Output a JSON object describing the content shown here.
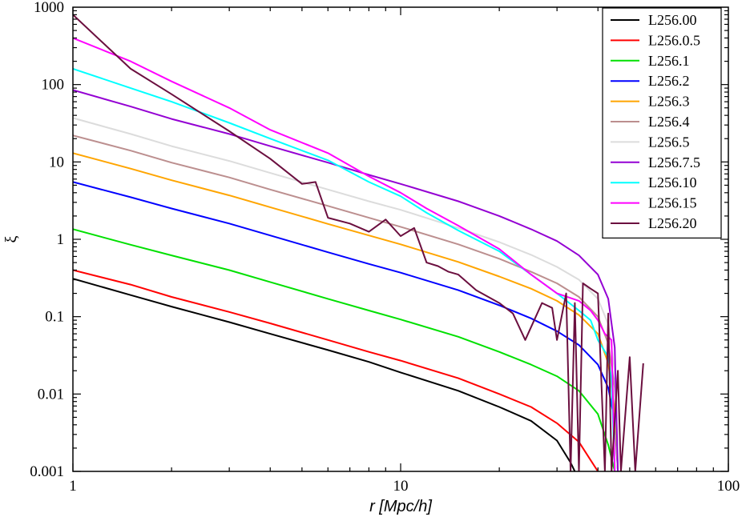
{
  "chart_data": {
    "type": "line",
    "title": "",
    "xlabel": "r [Mpc/h]",
    "ylabel": "ξ",
    "xscale": "log",
    "yscale": "log",
    "xlim": [
      1,
      100
    ],
    "ylim": [
      0.001,
      1000
    ],
    "x_ticks": [
      "1",
      "10",
      "100"
    ],
    "y_ticks": [
      "0.001",
      "0.01",
      "0.1",
      "1",
      "10",
      "100",
      "1000"
    ],
    "legend_position": "top-right",
    "grid": false,
    "series": [
      {
        "name": "L256.00",
        "color": "#000000",
        "points": [
          [
            1,
            0.31
          ],
          [
            1.5,
            0.19
          ],
          [
            2,
            0.135
          ],
          [
            3,
            0.085
          ],
          [
            4,
            0.06
          ],
          [
            6,
            0.037
          ],
          [
            8,
            0.026
          ],
          [
            10,
            0.019
          ],
          [
            15,
            0.011
          ],
          [
            20,
            0.0068
          ],
          [
            25,
            0.0045
          ],
          [
            30,
            0.0025
          ],
          [
            33,
            0.0013
          ],
          [
            34,
            0.001
          ]
        ]
      },
      {
        "name": "L256.0.5",
        "color": "#ff0000",
        "points": [
          [
            1,
            0.4
          ],
          [
            1.5,
            0.26
          ],
          [
            2,
            0.18
          ],
          [
            3,
            0.115
          ],
          [
            4,
            0.082
          ],
          [
            6,
            0.05
          ],
          [
            8,
            0.035
          ],
          [
            10,
            0.027
          ],
          [
            15,
            0.016
          ],
          [
            20,
            0.01
          ],
          [
            25,
            0.0068
          ],
          [
            30,
            0.0042
          ],
          [
            35,
            0.0024
          ],
          [
            38,
            0.0014
          ],
          [
            40,
            0.001
          ]
        ]
      },
      {
        "name": "L256.1",
        "color": "#00e000",
        "points": [
          [
            1,
            1.35
          ],
          [
            1.5,
            0.85
          ],
          [
            2,
            0.62
          ],
          [
            3,
            0.4
          ],
          [
            4,
            0.28
          ],
          [
            6,
            0.17
          ],
          [
            8,
            0.12
          ],
          [
            10,
            0.092
          ],
          [
            15,
            0.055
          ],
          [
            20,
            0.035
          ],
          [
            25,
            0.024
          ],
          [
            30,
            0.017
          ],
          [
            35,
            0.011
          ],
          [
            40,
            0.0055
          ],
          [
            43,
            0.0022
          ],
          [
            45,
            0.001
          ]
        ]
      },
      {
        "name": "L256.2",
        "color": "#0000ff",
        "points": [
          [
            1,
            5.5
          ],
          [
            1.5,
            3.5
          ],
          [
            2,
            2.5
          ],
          [
            3,
            1.6
          ],
          [
            4,
            1.12
          ],
          [
            6,
            0.68
          ],
          [
            8,
            0.48
          ],
          [
            10,
            0.37
          ],
          [
            15,
            0.22
          ],
          [
            20,
            0.14
          ],
          [
            25,
            0.095
          ],
          [
            30,
            0.065
          ],
          [
            35,
            0.043
          ],
          [
            40,
            0.024
          ],
          [
            43,
            0.012
          ],
          [
            45,
            0.0045
          ],
          [
            46,
            0.001
          ]
        ]
      },
      {
        "name": "L256.3",
        "color": "#ffa500",
        "points": [
          [
            1,
            13
          ],
          [
            1.5,
            8.2
          ],
          [
            2,
            5.8
          ],
          [
            3,
            3.7
          ],
          [
            4,
            2.6
          ],
          [
            6,
            1.58
          ],
          [
            8,
            1.12
          ],
          [
            10,
            0.86
          ],
          [
            15,
            0.51
          ],
          [
            20,
            0.33
          ],
          [
            25,
            0.23
          ],
          [
            30,
            0.16
          ],
          [
            35,
            0.105
          ],
          [
            40,
            0.06
          ],
          [
            43,
            0.025
          ],
          [
            45,
            0.006
          ],
          [
            46,
            0.001
          ]
        ]
      },
      {
        "name": "L256.4",
        "color": "#bc8f8f",
        "points": [
          [
            1,
            22
          ],
          [
            1.5,
            14
          ],
          [
            2,
            9.8
          ],
          [
            3,
            6.3
          ],
          [
            4,
            4.4
          ],
          [
            6,
            2.7
          ],
          [
            8,
            1.9
          ],
          [
            10,
            1.45
          ],
          [
            15,
            0.86
          ],
          [
            20,
            0.56
          ],
          [
            25,
            0.38
          ],
          [
            30,
            0.27
          ],
          [
            35,
            0.18
          ],
          [
            40,
            0.1
          ],
          [
            43,
            0.045
          ],
          [
            45,
            0.012
          ],
          [
            46,
            0.001
          ]
        ]
      },
      {
        "name": "L256.5",
        "color": "#dcdcdc",
        "points": [
          [
            1,
            37
          ],
          [
            1.5,
            23
          ],
          [
            2,
            16
          ],
          [
            3,
            10.3
          ],
          [
            4,
            7.2
          ],
          [
            6,
            4.4
          ],
          [
            8,
            3.1
          ],
          [
            10,
            2.4
          ],
          [
            15,
            1.4
          ],
          [
            20,
            0.92
          ],
          [
            25,
            0.63
          ],
          [
            30,
            0.44
          ],
          [
            35,
            0.3
          ],
          [
            40,
            0.17
          ],
          [
            43,
            0.08
          ],
          [
            45,
            0.02
          ],
          [
            46,
            0.001
          ]
        ]
      },
      {
        "name": "L256.7.5",
        "color": "#9400d3",
        "points": [
          [
            1,
            85
          ],
          [
            1.5,
            52
          ],
          [
            2,
            36
          ],
          [
            3,
            23
          ],
          [
            4,
            16
          ],
          [
            6,
            9.8
          ],
          [
            8,
            6.8
          ],
          [
            10,
            5.2
          ],
          [
            15,
            3.1
          ],
          [
            20,
            2.0
          ],
          [
            25,
            1.35
          ],
          [
            30,
            0.95
          ],
          [
            35,
            0.62
          ],
          [
            40,
            0.35
          ],
          [
            43,
            0.17
          ],
          [
            45,
            0.04
          ],
          [
            46,
            0.001
          ]
        ]
      },
      {
        "name": "L256.10",
        "color": "#00ffff",
        "points": [
          [
            1,
            160
          ],
          [
            1.5,
            90
          ],
          [
            2,
            60
          ],
          [
            3,
            32
          ],
          [
            4,
            20
          ],
          [
            6,
            10.5
          ],
          [
            8,
            5.5
          ],
          [
            10,
            3.6
          ],
          [
            12,
            2.2
          ],
          [
            15,
            1.3
          ],
          [
            20,
            0.7
          ],
          [
            25,
            0.35
          ],
          [
            30,
            0.2
          ],
          [
            35,
            0.12
          ],
          [
            38,
            0.09
          ],
          [
            40,
            0.05
          ],
          [
            43,
            0.03
          ],
          [
            44,
            0.015
          ],
          [
            45,
            0.001
          ]
        ]
      },
      {
        "name": "L256.15",
        "color": "#ff00ff",
        "points": [
          [
            1,
            400
          ],
          [
            1.5,
            200
          ],
          [
            2,
            110
          ],
          [
            3,
            50
          ],
          [
            4,
            26
          ],
          [
            6,
            13
          ],
          [
            8,
            6.5
          ],
          [
            10,
            4
          ],
          [
            12,
            2.5
          ],
          [
            15,
            1.5
          ],
          [
            20,
            0.75
          ],
          [
            25,
            0.35
          ],
          [
            30,
            0.2
          ],
          [
            35,
            0.16
          ],
          [
            38,
            0.12
          ],
          [
            40,
            0.09
          ],
          [
            42,
            0.06
          ],
          [
            44,
            0.05
          ],
          [
            45,
            0.001
          ]
        ]
      },
      {
        "name": "L256.20",
        "color": "#6b0f3f",
        "points": [
          [
            1,
            800
          ],
          [
            1.5,
            160
          ],
          [
            2,
            75
          ],
          [
            3,
            25
          ],
          [
            4,
            11
          ],
          [
            5,
            5.2
          ],
          [
            5.5,
            5.5
          ],
          [
            6,
            1.9
          ],
          [
            7,
            1.6
          ],
          [
            8,
            1.25
          ],
          [
            9,
            1.8
          ],
          [
            10,
            1.1
          ],
          [
            11,
            1.4
          ],
          [
            12,
            0.5
          ],
          [
            13,
            0.45
          ],
          [
            14,
            0.38
          ],
          [
            15,
            0.35
          ],
          [
            17,
            0.22
          ],
          [
            20,
            0.15
          ],
          [
            22,
            0.11
          ],
          [
            24,
            0.05
          ],
          [
            27,
            0.15
          ],
          [
            29,
            0.13
          ],
          [
            30,
            0.05
          ],
          [
            32,
            0.2
          ],
          [
            33,
            0.001
          ],
          [
            34,
            0.15
          ],
          [
            35,
            0.001
          ],
          [
            36,
            0.27
          ],
          [
            38,
            0.23
          ],
          [
            40,
            0.2
          ],
          [
            42,
            0.001
          ],
          [
            43,
            0.11
          ],
          [
            44,
            0.001
          ],
          [
            46,
            0.02
          ],
          [
            47,
            0.001
          ],
          [
            50,
            0.03
          ],
          [
            52,
            0.001
          ],
          [
            55,
            0.025
          ]
        ]
      }
    ]
  }
}
